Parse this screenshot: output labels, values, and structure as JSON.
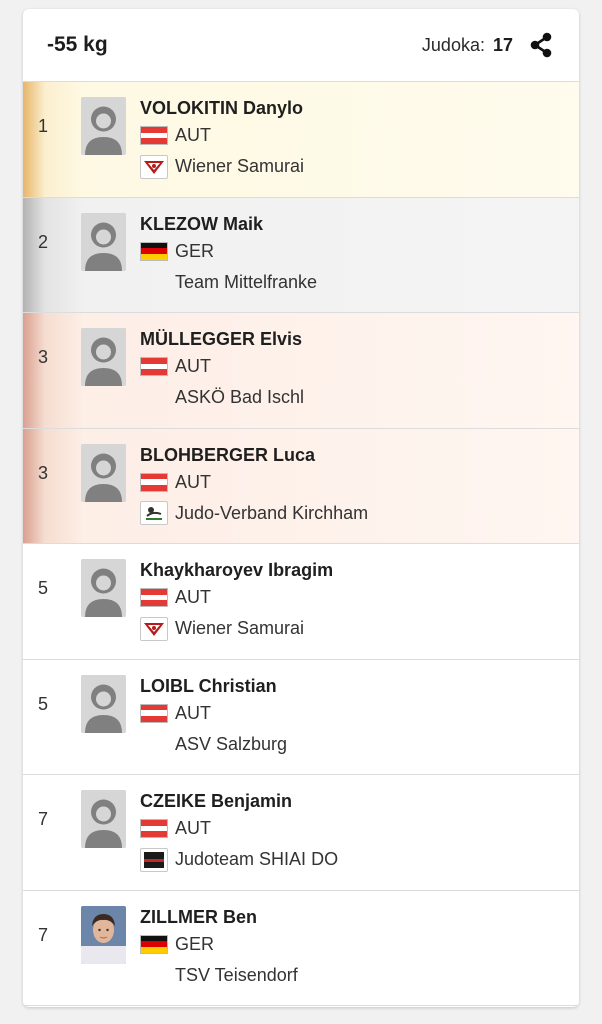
{
  "header": {
    "title": "-55 kg",
    "count_label": "Judoka:",
    "count_value": "17"
  },
  "colors": {
    "gold": "#fdf6dd",
    "silver": "#efefef",
    "bronze": "#fcebe1",
    "aut_red": "#e53935",
    "ger_gold": "#ffcc00"
  },
  "results": [
    {
      "rank": "1",
      "name": "VOLOKITIN Danylo",
      "country": "AUT",
      "club": "Wiener Samurai",
      "club_logo": "samurai-logo"
    },
    {
      "rank": "2",
      "name": "KLEZOW Maik",
      "country": "GER",
      "club": "Team Mittelfranke",
      "club_logo": ""
    },
    {
      "rank": "3",
      "name": "MÜLLEGGER Elvis",
      "country": "AUT",
      "club": "ASKÖ Bad Ischl",
      "club_logo": ""
    },
    {
      "rank": "3",
      "name": "BLOHBERGER Luca",
      "country": "AUT",
      "club": "Judo-Verband Kirchham",
      "club_logo": "kirchham-logo"
    },
    {
      "rank": "5",
      "name": "Khaykharoyev Ibragim",
      "country": "AUT",
      "club": "Wiener Samurai",
      "club_logo": "samurai-logo"
    },
    {
      "rank": "5",
      "name": "LOIBL Christian",
      "country": "AUT",
      "club": "ASV Salzburg",
      "club_logo": ""
    },
    {
      "rank": "7",
      "name": "CZEIKE Benjamin",
      "country": "AUT",
      "club": "Judoteam SHIAI DO",
      "club_logo": "shiai-logo"
    },
    {
      "rank": "7",
      "name": "ZILLMER Ben",
      "country": "GER",
      "club": "TSV Teisendorf",
      "club_logo": ""
    }
  ]
}
